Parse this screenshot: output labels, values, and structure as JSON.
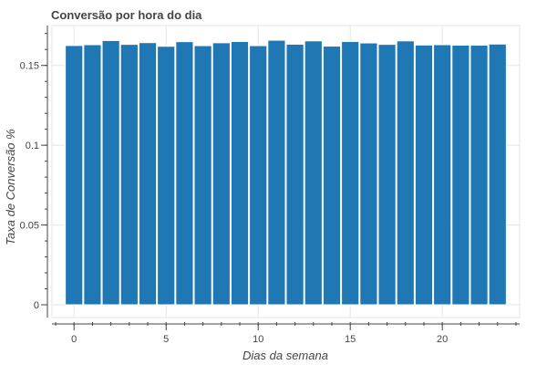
{
  "chart_data": {
    "type": "bar",
    "title": "Conversão por hora do dia",
    "xlabel": "Dias da semana",
    "ylabel": "Taxa de Conversão %",
    "x": [
      0,
      1,
      2,
      3,
      4,
      5,
      6,
      7,
      8,
      9,
      10,
      11,
      12,
      13,
      14,
      15,
      16,
      17,
      18,
      19,
      20,
      21,
      22,
      23
    ],
    "values": [
      0.1625,
      0.163,
      0.1656,
      0.1632,
      0.1643,
      0.162,
      0.1649,
      0.1624,
      0.1642,
      0.165,
      0.1624,
      0.1658,
      0.1633,
      0.1654,
      0.1621,
      0.165,
      0.1641,
      0.1632,
      0.1654,
      0.1628,
      0.163,
      0.1627,
      0.1627,
      0.1634
    ],
    "bar_width": 0.95,
    "xlim": [
      -1.2,
      24.2
    ],
    "ylim": [
      -0.008,
      0.175
    ],
    "x_ticks": [
      0,
      5,
      10,
      15,
      20
    ],
    "x_tick_labels": [
      "0",
      "5",
      "10",
      "15",
      "20"
    ],
    "y_ticks": [
      0,
      0.05,
      0.1,
      0.15
    ],
    "y_tick_labels": [
      "0",
      "0.05",
      "0.1",
      "0.15"
    ],
    "grid": true,
    "colors": {
      "bar": "#1f77b4",
      "bar_edge": "#ffffff",
      "grid": "#e5e5e5",
      "axis": "#444444"
    }
  }
}
